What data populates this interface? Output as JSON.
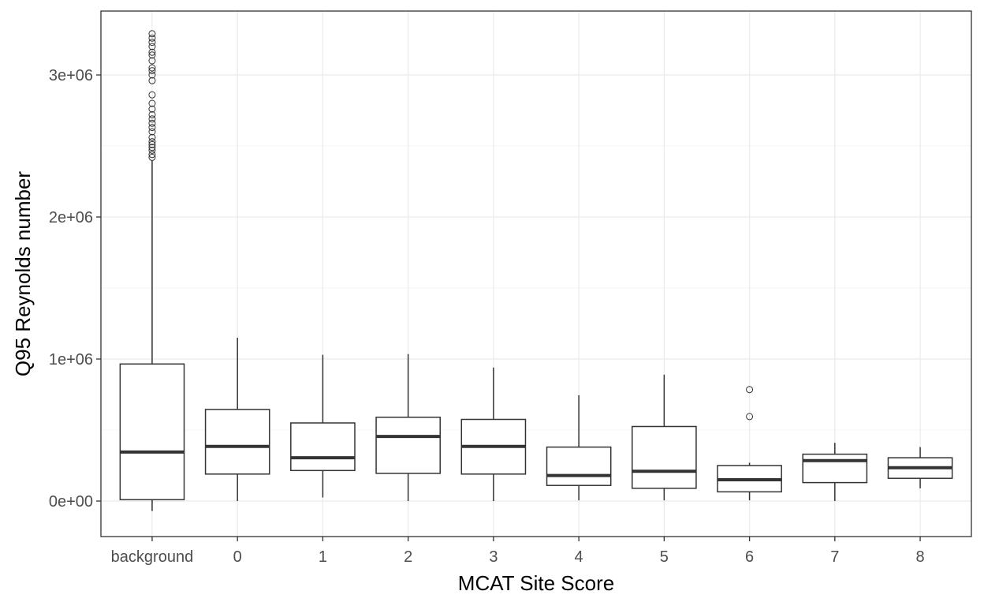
{
  "chart_data": {
    "type": "boxplot",
    "xlabel": "MCAT Site Score",
    "ylabel": "Q95 Reynolds number",
    "ylim": [
      -250000,
      3450000
    ],
    "yticks": [
      0,
      1000000,
      2000000,
      3000000
    ],
    "ytick_labels": [
      "0e+00",
      "1e+06",
      "2e+06",
      "3e+06"
    ],
    "grid": true,
    "categories": [
      "background",
      "0",
      "1",
      "2",
      "3",
      "4",
      "5",
      "6",
      "7",
      "8"
    ],
    "boxes": [
      {
        "category": "background",
        "whisker_low": -70000,
        "q1": 10000,
        "median": 345000,
        "q3": 965000,
        "whisker_high": 2400000,
        "outliers": [
          2420000,
          2440000,
          2470000,
          2490000,
          2510000,
          2530000,
          2560000,
          2600000,
          2630000,
          2660000,
          2690000,
          2720000,
          2760000,
          2800000,
          2860000,
          2960000,
          3000000,
          3030000,
          3050000,
          3100000,
          3140000,
          3160000,
          3200000,
          3230000,
          3260000,
          3290000
        ]
      },
      {
        "category": "0",
        "whisker_low": 0,
        "q1": 190000,
        "median": 385000,
        "q3": 645000,
        "whisker_high": 1150000,
        "outliers": []
      },
      {
        "category": "1",
        "whisker_low": 25000,
        "q1": 215000,
        "median": 305000,
        "q3": 550000,
        "whisker_high": 1030000,
        "outliers": []
      },
      {
        "category": "2",
        "whisker_low": 0,
        "q1": 195000,
        "median": 455000,
        "q3": 590000,
        "whisker_high": 1035000,
        "outliers": []
      },
      {
        "category": "3",
        "whisker_low": 0,
        "q1": 190000,
        "median": 385000,
        "q3": 575000,
        "whisker_high": 940000,
        "outliers": []
      },
      {
        "category": "4",
        "whisker_low": 5000,
        "q1": 110000,
        "median": 180000,
        "q3": 380000,
        "whisker_high": 745000,
        "outliers": []
      },
      {
        "category": "5",
        "whisker_low": 5000,
        "q1": 90000,
        "median": 210000,
        "q3": 525000,
        "whisker_high": 890000,
        "outliers": []
      },
      {
        "category": "6",
        "whisker_low": 5000,
        "q1": 65000,
        "median": 150000,
        "q3": 250000,
        "whisker_high": 270000,
        "outliers": [
          595000,
          785000
        ]
      },
      {
        "category": "7",
        "whisker_low": 0,
        "q1": 130000,
        "median": 285000,
        "q3": 330000,
        "whisker_high": 410000,
        "outliers": []
      },
      {
        "category": "8",
        "whisker_low": 90000,
        "q1": 160000,
        "median": 235000,
        "q3": 305000,
        "whisker_high": 380000,
        "outliers": []
      }
    ],
    "colors": {
      "box_line": "#333333",
      "grid_major": "#ebebeb",
      "grid_minor": "#f5f5f5",
      "panel_border": "#333333",
      "tick_text": "#4d4d4d"
    }
  }
}
